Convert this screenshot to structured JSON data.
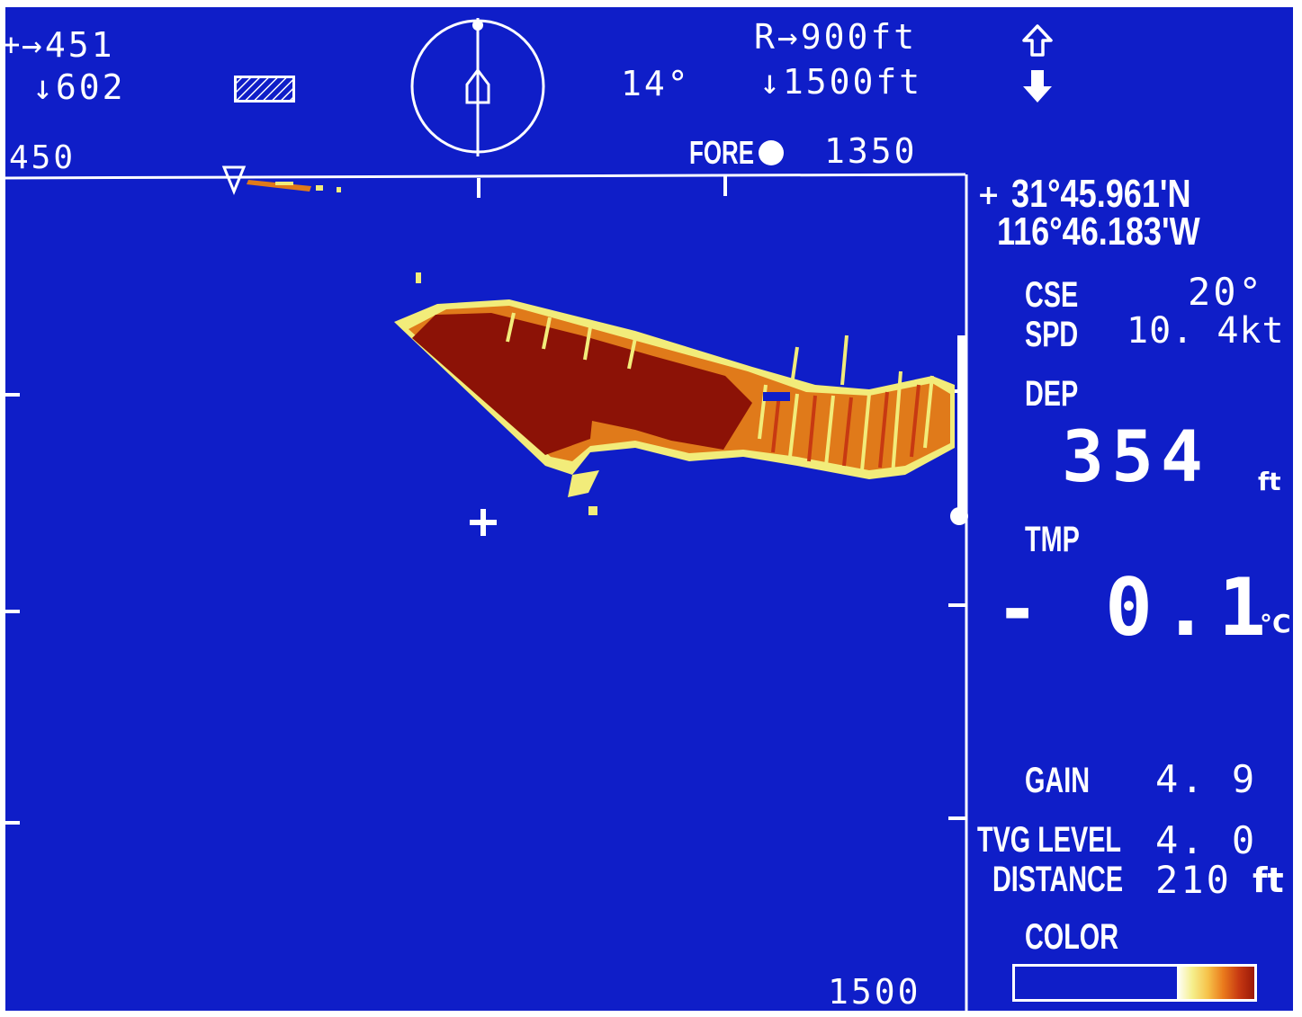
{
  "top_left": {
    "range_right": "→451",
    "depth_down": "↓602",
    "scale_start": "450"
  },
  "heading_indicator": {
    "angle": "14°"
  },
  "range_panel": {
    "range": "R→900ft",
    "depth": "↓1500ft",
    "fore_label": "FORE",
    "scale_mid": "1350",
    "scale_bottom": "1500"
  },
  "position": {
    "lat": "31°45.961'N",
    "lon": "116°46.183'W"
  },
  "nav": {
    "cse_label": "CSE",
    "cse_value": "20°",
    "spd_label": "SPD",
    "spd_value": "10. 4kt"
  },
  "depth": {
    "label": "DEP",
    "value": "354",
    "unit": "ft"
  },
  "temperature": {
    "label": "TMP",
    "sign": "-",
    "value": "0.1",
    "unit": "°C"
  },
  "settings": {
    "gain_label": "GAIN",
    "gain_value": "4. 9",
    "tvg_label": "TVG LEVEL",
    "tvg_value": "4. 0",
    "distance_label": "DISTANCE",
    "distance_value": "210",
    "distance_unit": "ft"
  },
  "color_bar": {
    "label": "COLOR",
    "gradient": [
      "#ffffff",
      "#f5ef8c",
      "#f6c24a",
      "#ea7a1c",
      "#c73912",
      "#9a1908"
    ]
  },
  "colors": {
    "background": "#0f1ec8",
    "echo_strong": "#8c1206",
    "echo_mid": "#e07a1a",
    "echo_weak": "#f2ec7a"
  },
  "icons": {
    "tilt_up": "up-arrow-outline-icon",
    "tilt_down": "down-arrow-filled-icon",
    "compass": "compass-ship-icon",
    "hatched": "hatched-box-icon",
    "cursor": "cursor-crosshair-icon"
  }
}
